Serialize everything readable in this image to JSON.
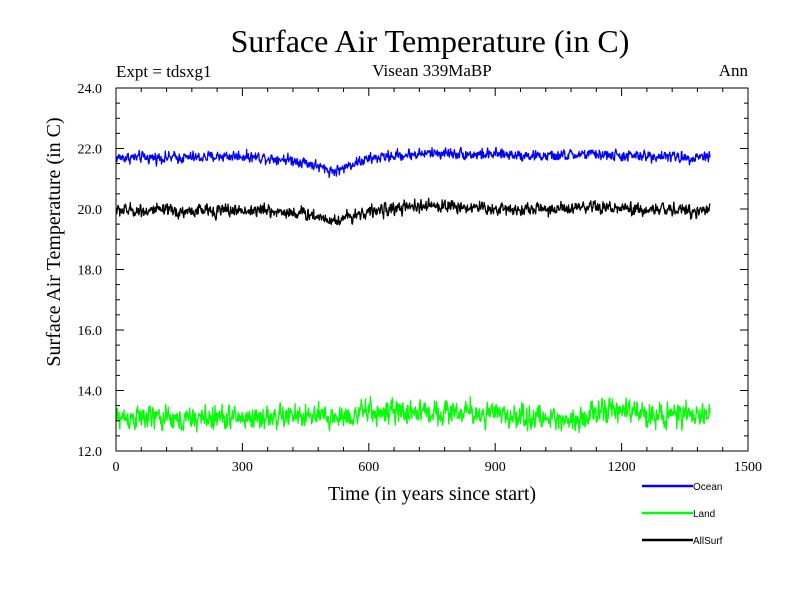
{
  "chart_data": {
    "type": "line",
    "title": "Surface Air Temperature (in C)",
    "subtitle_left": "Expt = tdsxg1",
    "subtitle_center": "Visean 339MaBP",
    "subtitle_right": "Ann",
    "xlabel": "Time (in years since start)",
    "ylabel": "Surface Air Temperature (in C)",
    "xlim": [
      0,
      1500
    ],
    "ylim": [
      12.0,
      24.0
    ],
    "xticks": [
      0,
      300,
      600,
      900,
      1200,
      1500
    ],
    "xtick_labels": [
      "0",
      "300",
      "600",
      "900",
      "1200",
      "1500"
    ],
    "yticks": [
      12.0,
      14.0,
      16.0,
      18.0,
      20.0,
      22.0,
      24.0
    ],
    "ytick_labels": [
      "12.0",
      "14.0",
      "16.0",
      "18.0",
      "20.0",
      "22.0",
      "24.0"
    ],
    "grid": false,
    "legend_position": "bottom-right",
    "series": [
      {
        "name": "Ocean",
        "color": "#0000ff",
        "x": [
          0,
          50,
          100,
          150,
          200,
          250,
          300,
          350,
          400,
          450,
          480,
          500,
          520,
          540,
          560,
          600,
          650,
          700,
          750,
          800,
          850,
          900,
          950,
          1000,
          1050,
          1100,
          1150,
          1200,
          1250,
          1300,
          1350,
          1400,
          1410
        ],
        "values": [
          21.7,
          21.7,
          21.7,
          21.7,
          21.7,
          21.75,
          21.75,
          21.7,
          21.65,
          21.55,
          21.4,
          21.3,
          21.25,
          21.35,
          21.5,
          21.65,
          21.75,
          21.8,
          21.85,
          21.85,
          21.8,
          21.8,
          21.8,
          21.75,
          21.75,
          21.8,
          21.8,
          21.75,
          21.75,
          21.75,
          21.7,
          21.75,
          21.8
        ],
        "noise": 0.13
      },
      {
        "name": "Land",
        "color": "#00ff00",
        "x": [
          0,
          50,
          100,
          150,
          200,
          250,
          300,
          350,
          400,
          450,
          500,
          550,
          600,
          650,
          700,
          750,
          800,
          850,
          900,
          950,
          1000,
          1050,
          1100,
          1150,
          1200,
          1250,
          1300,
          1350,
          1400,
          1410
        ],
        "values": [
          13.1,
          13.1,
          13.1,
          13.0,
          13.1,
          13.1,
          13.1,
          13.1,
          13.15,
          13.15,
          13.1,
          13.15,
          13.3,
          13.25,
          13.3,
          13.3,
          13.3,
          13.25,
          13.2,
          13.15,
          13.1,
          13.05,
          13.1,
          13.3,
          13.35,
          13.25,
          13.2,
          13.15,
          13.15,
          13.3
        ],
        "noise": 0.28
      },
      {
        "name": "AllSurf",
        "color": "#000000",
        "x": [
          0,
          50,
          100,
          150,
          200,
          250,
          300,
          350,
          400,
          450,
          480,
          500,
          520,
          540,
          560,
          600,
          650,
          700,
          750,
          800,
          850,
          900,
          950,
          1000,
          1050,
          1100,
          1150,
          1200,
          1250,
          1300,
          1350,
          1400,
          1410
        ],
        "values": [
          19.95,
          19.95,
          19.95,
          19.9,
          19.95,
          19.95,
          19.95,
          19.95,
          19.9,
          19.85,
          19.75,
          19.7,
          19.6,
          19.7,
          19.8,
          19.9,
          20.0,
          20.05,
          20.1,
          20.1,
          20.05,
          20.0,
          20.0,
          20.0,
          20.0,
          20.0,
          20.05,
          20.0,
          19.95,
          20.0,
          19.95,
          19.95,
          20.1
        ],
        "noise": 0.15
      }
    ]
  }
}
